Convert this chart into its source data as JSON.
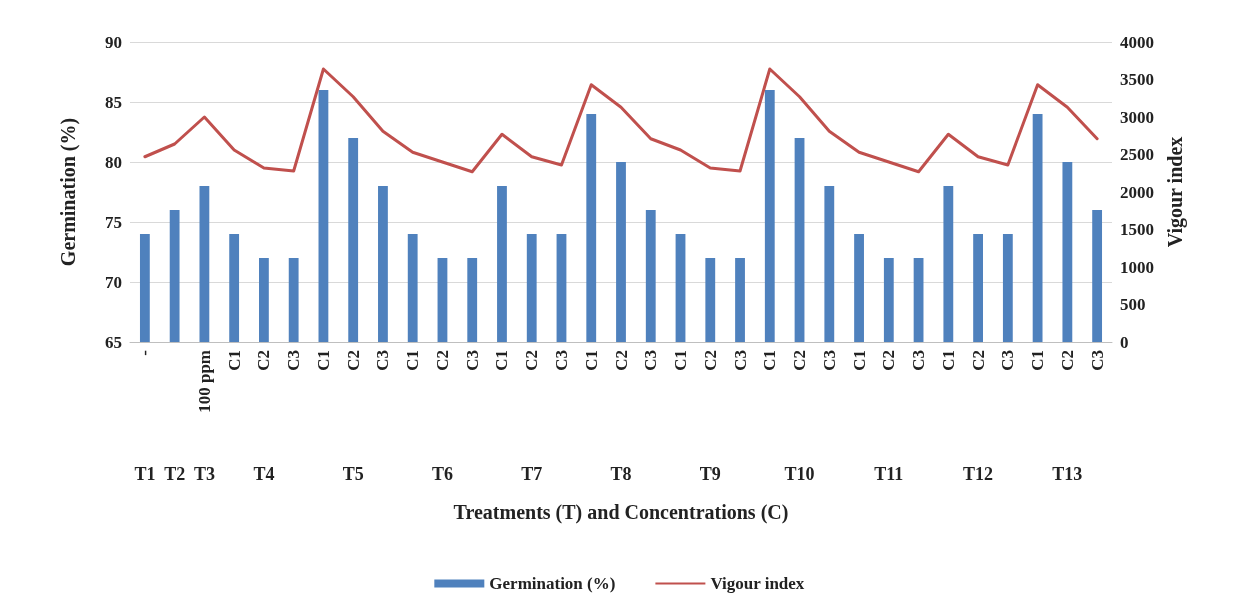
{
  "chart_data": {
    "type": "bar",
    "xlabel": "Treatments (T) and Concentrations (C)",
    "ylabel": "Germination (%)",
    "y2label": "Vigour index",
    "categories": [
      "-",
      null,
      "100 ppm",
      "C1",
      "C2",
      "C3",
      "C1",
      "C2",
      "C3",
      "C1",
      "C2",
      "C3",
      "C1",
      "C2",
      "C3",
      "C1",
      "C2",
      "C3",
      "C1",
      "C2",
      "C3",
      "C1",
      "C2",
      "C3",
      "C1",
      "C2",
      "C3",
      "C1",
      "C2",
      "C3",
      "C1",
      "C2",
      "C3"
    ],
    "annotations": [
      "T1",
      "T2",
      "T3",
      "T4",
      "T5",
      "T6",
      "T7",
      "T8",
      "T9",
      "T10",
      "T11",
      "T12",
      "T13"
    ],
    "series": [
      {
        "name": "Germination (%)",
        "color": "#4f81bd",
        "values": [
          74,
          76,
          78,
          74,
          72,
          72,
          86,
          82,
          78,
          74,
          72,
          72,
          78,
          74,
          74,
          84,
          80,
          76,
          74,
          72,
          72,
          86,
          82,
          78,
          74,
          72,
          72,
          78,
          74,
          74,
          84,
          80,
          76
        ]
      },
      {
        "name": "Vigour index",
        "type": "line",
        "axis": "y2",
        "color": "#c0504d",
        "values": [
          2470,
          2640,
          3000,
          2560,
          2320,
          2280,
          3640,
          3270,
          2810,
          2530,
          2400,
          2270,
          2770,
          2470,
          2360,
          3430,
          3130,
          2710,
          2560,
          2320,
          2280,
          3640,
          3270,
          2810,
          2530,
          2400,
          2270,
          2770,
          2470,
          2360,
          3430,
          3130,
          2710
        ]
      }
    ],
    "ylim": [
      65,
      90
    ],
    "yticks": [
      65,
      70,
      75,
      80,
      85,
      90
    ],
    "y2lim": [
      0,
      4000
    ],
    "y2ticks": [
      0,
      500,
      1000,
      1500,
      2000,
      2500,
      3000,
      3500,
      4000
    ],
    "grid": "y",
    "legend": "bottom",
    "marker": "none"
  }
}
